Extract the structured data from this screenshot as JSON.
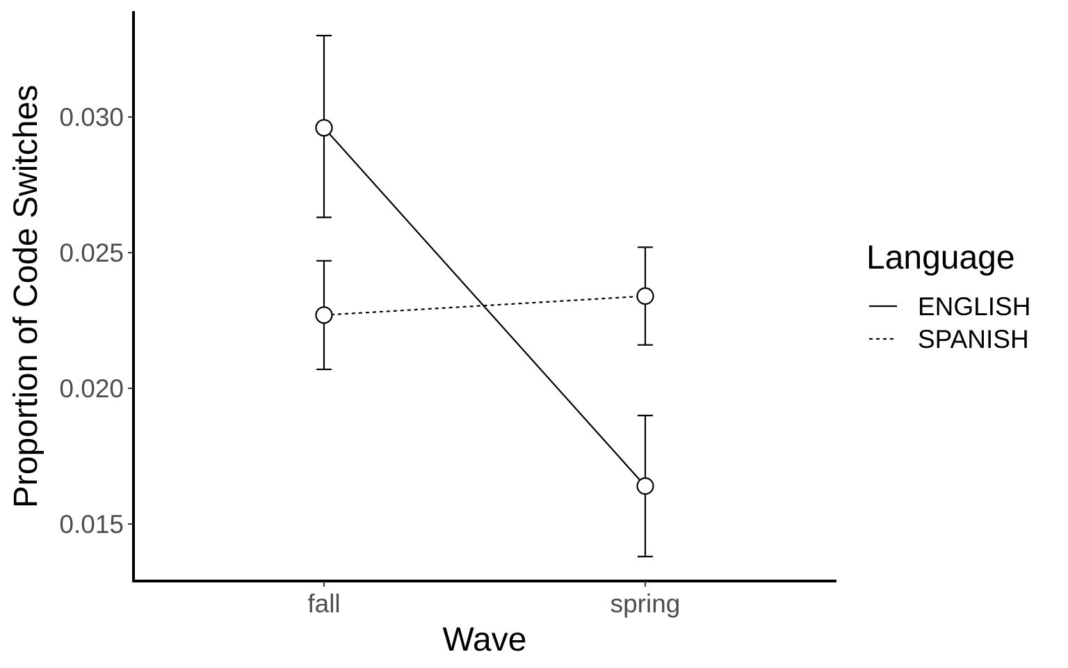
{
  "chart_data": {
    "type": "line",
    "title": "",
    "xlabel": "Wave",
    "ylabel": "Proportion of Code Switches",
    "categories": [
      "fall",
      "spring"
    ],
    "ylim": [
      0.0129,
      0.0339
    ],
    "yticks": [
      0.015,
      0.02,
      0.025,
      0.03
    ],
    "ytick_labels": [
      "0.015",
      "0.020",
      "0.025",
      "0.030"
    ],
    "grid": false,
    "legend": {
      "title": "Language",
      "placement": "right"
    },
    "series": [
      {
        "name": "ENGLISH",
        "linestyle": "solid",
        "values": [
          0.0296,
          0.0164
        ],
        "error_low": [
          0.0263,
          0.0138
        ],
        "error_high": [
          0.033,
          0.019
        ]
      },
      {
        "name": "SPANISH",
        "linestyle": "dotted",
        "values": [
          0.0227,
          0.0234
        ],
        "error_low": [
          0.0207,
          0.0216
        ],
        "error_high": [
          0.0247,
          0.0252
        ]
      }
    ],
    "colors": {
      "line": "#000000",
      "marker_fill": "#ffffff",
      "tick_text": "#4d4d4d"
    }
  }
}
